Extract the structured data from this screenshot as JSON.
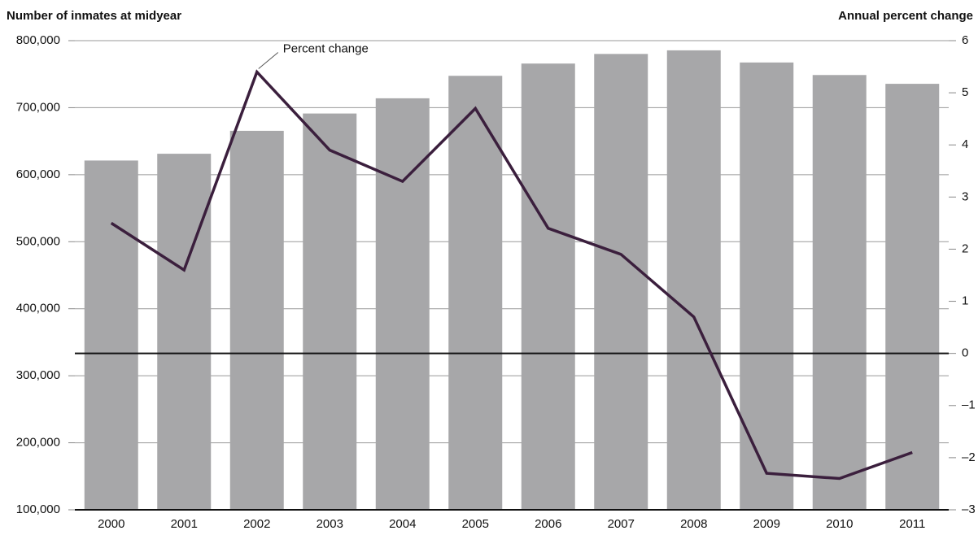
{
  "chart_data": {
    "type": "bar",
    "y_label": "Number of inmates at midyear",
    "y2_label": "Annual percent change",
    "categories": [
      "2000",
      "2001",
      "2002",
      "2003",
      "2004",
      "2005",
      "2006",
      "2007",
      "2008",
      "2009",
      "2010",
      "2011"
    ],
    "series": [
      {
        "type": "bar",
        "color": "#a7a7a9",
        "values": [
          621149,
          631240,
          665475,
          691301,
          713990,
          747529,
          765819,
          780174,
          785533,
          767434,
          748728,
          735601
        ]
      },
      {
        "type": "line",
        "name": "Percent change",
        "axis": "y2",
        "color": "#3b1f3d",
        "values": [
          2.5,
          1.6,
          5.4,
          3.9,
          3.3,
          4.7,
          2.4,
          1.9,
          0.7,
          -2.3,
          -2.4,
          -1.9
        ]
      }
    ],
    "ylim": [
      100000,
      800000
    ],
    "yticks": [
      {
        "value": 100000,
        "label": "100,000"
      },
      {
        "value": 200000,
        "label": "200,000"
      },
      {
        "value": 300000,
        "label": "300,000"
      },
      {
        "value": 400000,
        "label": "400,000"
      },
      {
        "value": 500000,
        "label": "500,000"
      },
      {
        "value": 600000,
        "label": "600,000"
      },
      {
        "value": 700000,
        "label": "700,000"
      },
      {
        "value": 800000,
        "label": "800,000"
      }
    ],
    "y2lim": [
      -3,
      6
    ],
    "y2ticks": [
      {
        "value": -3,
        "label": "–3"
      },
      {
        "value": -2,
        "label": "–2"
      },
      {
        "value": -1,
        "label": "–1"
      },
      0,
      1,
      2,
      3,
      4,
      5,
      6
    ],
    "grid": true
  }
}
